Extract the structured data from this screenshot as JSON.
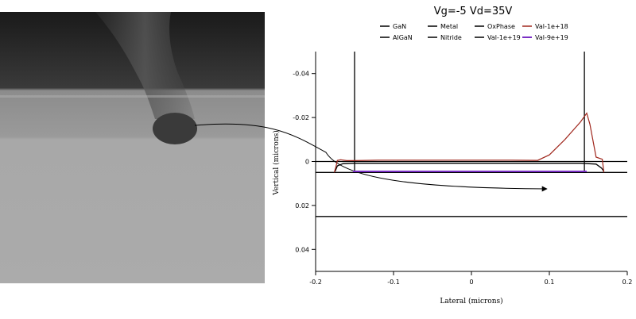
{
  "chart_data": {
    "type": "line",
    "title": "Vg=-5 Vd=35V",
    "xlabel": "Lateral (microns)",
    "ylabel": "Vertical (microns)",
    "xlim": [
      -0.2,
      0.2
    ],
    "ylim": [
      -0.05,
      0.05
    ],
    "y_inverted": true,
    "xticks": [
      -0.2,
      -0.1,
      0,
      0.1,
      0.2
    ],
    "xtick_labels": [
      "-0.2",
      "-0.1",
      "0",
      "0.1",
      "0.2"
    ],
    "yticks": [
      -0.04,
      -0.02,
      0,
      0.02,
      0.04
    ],
    "ytick_labels": [
      "-0.04",
      "-0.02",
      "0",
      "0.02",
      "0.04"
    ],
    "grid": false,
    "legend_placement": "top",
    "legend": [
      {
        "name": "GaN",
        "color": "#000000"
      },
      {
        "name": "Metal",
        "color": "#000000"
      },
      {
        "name": "OxPhase",
        "color": "#000000"
      },
      {
        "name": "Val-1e+18",
        "color": "#a0281e"
      },
      {
        "name": "AlGaN",
        "color": "#000000"
      },
      {
        "name": "Nitride",
        "color": "#000000"
      },
      {
        "name": "Val-1e+19",
        "color": "#000000"
      },
      {
        "name": "Val-9e+19",
        "color": "#7a2fc4"
      }
    ],
    "series": [
      {
        "name": "Metal",
        "color": "#000000",
        "x": [
          -0.15,
          -0.15
        ],
        "y": [
          -0.05,
          0.005
        ]
      },
      {
        "name": "Metal",
        "color": "#000000",
        "x": [
          0.145,
          0.145
        ],
        "y": [
          -0.05,
          0.005
        ]
      },
      {
        "name": "Nitride",
        "color": "#000000",
        "x": [
          -0.2,
          0.2
        ],
        "y": [
          0.005,
          0.005
        ]
      },
      {
        "name": "AlGaN",
        "color": "#000000",
        "x": [
          -0.2,
          0.2
        ],
        "y": [
          0,
          0
        ]
      },
      {
        "name": "GaN",
        "color": "#000000",
        "x": [
          -0.2,
          0.2
        ],
        "y": [
          0.025,
          0.025
        ]
      },
      {
        "name": "Val-9e+19",
        "color": "#7a2fc4",
        "x": [
          -0.152,
          0.148
        ],
        "y": [
          0.0045,
          0.0045
        ]
      },
      {
        "name": "Val-1e+19",
        "color": "#000000",
        "x": [
          -0.175,
          -0.172,
          -0.165,
          -0.15,
          -0.1,
          0,
          0.1,
          0.14,
          0.16,
          0.167,
          0.17
        ],
        "y": [
          0.0045,
          0.002,
          0.001,
          0.0008,
          0.0008,
          0.0008,
          0.0008,
          0.0008,
          0.0012,
          0.003,
          0.0045
        ]
      },
      {
        "name": "Val-1e+18",
        "color": "#a0281e",
        "x": [
          -0.176,
          -0.174,
          -0.172,
          -0.168,
          -0.16,
          -0.15,
          -0.12,
          -0.05,
          0.05,
          0.085,
          0.1,
          0.12,
          0.14,
          0.148,
          0.152,
          0.16,
          0.168,
          0.17
        ],
        "y": [
          0.005,
          0.0025,
          -0.0005,
          -0.0008,
          -0.0004,
          -0.0004,
          -0.0006,
          -0.0006,
          -0.0006,
          -0.0005,
          -0.003,
          -0.01,
          -0.018,
          -0.022,
          -0.017,
          -0.002,
          -0.001,
          0.005
        ]
      }
    ]
  }
}
